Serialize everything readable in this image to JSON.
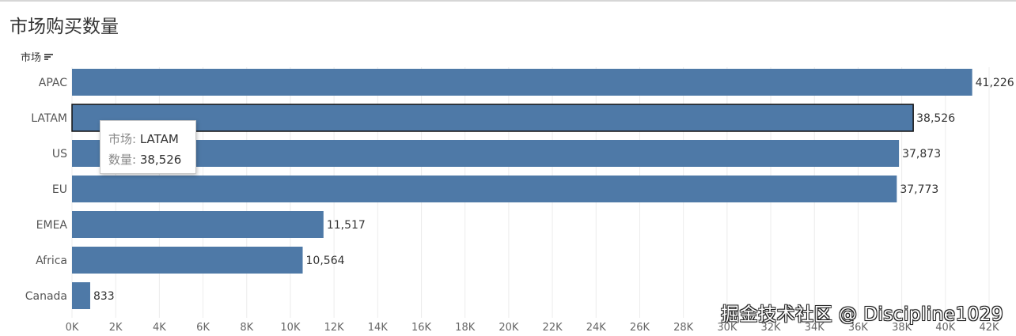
{
  "title": "市场购买数量",
  "field_header": "市场",
  "colors": {
    "bar": "#4e79a7",
    "highlight_border": "#111111",
    "grid": "#ececec"
  },
  "chart_data": {
    "type": "bar",
    "orientation": "horizontal",
    "categories": [
      "APAC",
      "LATAM",
      "US",
      "EU",
      "EMEA",
      "Africa",
      "Canada"
    ],
    "values": [
      41226,
      38526,
      37873,
      37773,
      11517,
      10564,
      833
    ],
    "value_labels": [
      "41,226",
      "38,526",
      "37,873",
      "37,773",
      "11,517",
      "10,564",
      "833"
    ],
    "xlim": [
      0,
      42000
    ],
    "xticks": [
      0,
      2000,
      4000,
      6000,
      8000,
      10000,
      12000,
      14000,
      16000,
      18000,
      20000,
      22000,
      24000,
      26000,
      28000,
      30000,
      32000,
      34000,
      36000,
      38000,
      40000,
      42000
    ],
    "xtick_labels": [
      "0K",
      "2K",
      "4K",
      "6K",
      "8K",
      "10K",
      "12K",
      "14K",
      "16K",
      "18K",
      "20K",
      "22K",
      "24K",
      "26K",
      "28K",
      "30K",
      "32K",
      "34K",
      "36K",
      "38K",
      "40K",
      "42K"
    ],
    "grid": true,
    "highlighted_category": "LATAM"
  },
  "tooltip": {
    "market_label": "市场:",
    "market_value": "LATAM",
    "qty_label": "数量:",
    "qty_value": "38,526"
  },
  "watermark": "掘金技术社区 @ Discipline1029"
}
